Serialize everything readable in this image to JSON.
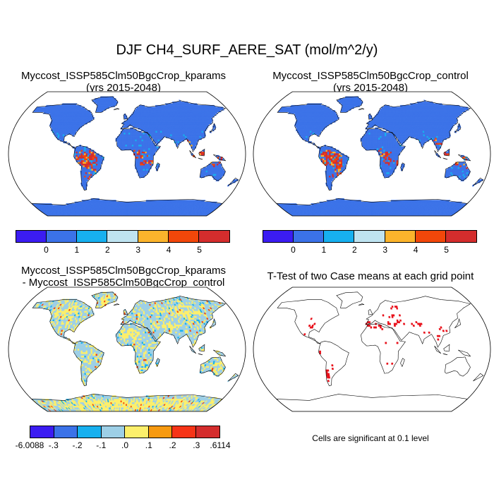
{
  "title": "DJF CH4_SURF_AERE_SAT (mol/m^2/y)",
  "panels": {
    "kparams": {
      "line1": "Myccost_ISSP585Clm50BgcCrop_kparams",
      "line2": "(yrs 2015-2048)"
    },
    "control": {
      "line1": "Myccost_ISSP585Clm50BgcCrop_control",
      "line2": "(yrs 2015-2048)"
    },
    "diff": {
      "line1": "Myccost_ISSP585Clm50BgcCrop_kparams",
      "line2": "- Myccost_ISSP585Clm50BgcCrop_control"
    },
    "ttest": {
      "line1": "T-Test of two Case means at each grid point",
      "note": "Cells are significant at 0.1 level"
    }
  },
  "colorbar_main": {
    "colors": [
      "#3b1cf2",
      "#3b72e8",
      "#17b0ef",
      "#bfe3f0",
      "#fbb42c",
      "#f2470a",
      "#d42d2d"
    ],
    "labels": [
      "0",
      "1",
      "2",
      "3",
      "4",
      "5"
    ]
  },
  "colorbar_diff": {
    "colors": [
      "#3b1cf2",
      "#3b72e8",
      "#17b0ef",
      "#9dcfe6",
      "#fcef6b",
      "#f79a10",
      "#f63417",
      "#d42d2d"
    ],
    "labels": [
      "-6.0088",
      "-.3",
      "-.2",
      "-.1",
      ".0",
      ".1",
      ".2",
      ".3",
      ".6114"
    ]
  },
  "map_colors": {
    "ocean": "#ffffff",
    "land_base": "#3b72e8",
    "land_alt": "#17b0ef",
    "wet_high": "#d42d2d",
    "wet_mid": "#f2470a",
    "wet_low": "#fbb42c",
    "diff_base": "#9dcfe6",
    "diff_pos": "#fcef6b",
    "diff_neg": "#17b0ef",
    "sig": "#e8101a",
    "coast": "#000000"
  }
}
